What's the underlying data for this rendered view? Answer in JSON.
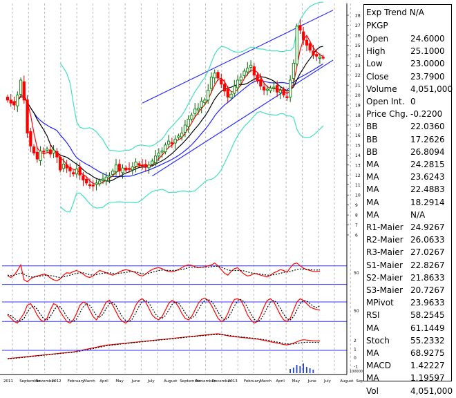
{
  "info_panel": {
    "title": "Exp Trend N/A",
    "symbol": "PKGP",
    "rows": [
      {
        "label": "Open",
        "value": "24.6000"
      },
      {
        "label": "High",
        "value": "25.1000"
      },
      {
        "label": "Low",
        "value": "23.0000"
      },
      {
        "label": "Close",
        "value": "23.7900"
      },
      {
        "label": "Volume",
        "value": "4,051,000"
      },
      {
        "label": "Open Int.",
        "value": "0"
      },
      {
        "label": "Price Chg.",
        "value": "-0.2200"
      },
      {
        "label": "BB",
        "value": "22.0360"
      },
      {
        "label": "BB",
        "value": "17.2626"
      },
      {
        "label": "BB",
        "value": "26.8094"
      },
      {
        "label": "MA",
        "value": "24.2815"
      },
      {
        "label": "MA",
        "value": "23.6243"
      },
      {
        "label": "MA",
        "value": "22.4883"
      },
      {
        "label": "MA",
        "value": "18.2914"
      },
      {
        "label": "MA",
        "value": "N/A"
      },
      {
        "label": "R1-Maier",
        "value": "24.9267"
      },
      {
        "label": "R2-Maier",
        "value": "26.0633"
      },
      {
        "label": "R3-Maier",
        "value": "27.0267"
      },
      {
        "label": "S1-Maier",
        "value": "22.8267"
      },
      {
        "label": "S2-Maier",
        "value": "21.8633"
      },
      {
        "label": "S3-Maier",
        "value": "20.7267"
      },
      {
        "label": "MPivot",
        "value": "23.9633"
      },
      {
        "label": "RSI",
        "value": "58.2545"
      },
      {
        "label": "MA",
        "value": "61.1449"
      },
      {
        "label": "Stoch",
        "value": "55.2332"
      },
      {
        "label": "MA",
        "value": "68.9275"
      },
      {
        "label": "MACD",
        "value": "1.42227"
      },
      {
        "label": "MA",
        "value": "1.19597"
      },
      {
        "label": "Vol",
        "value": "4,051,000"
      }
    ]
  },
  "chart_data": [
    {
      "type": "candlestick",
      "panel": "price",
      "y_ticks": [
        "28",
        "27",
        "26",
        "25",
        "24",
        "23",
        "22",
        "21",
        "20",
        "19",
        "18",
        "17",
        "16",
        "15",
        "14",
        "13",
        "12",
        "11",
        "10",
        "9",
        "8",
        "7",
        "6"
      ],
      "ylim": [
        5.5,
        28.5
      ],
      "x_ticks": [
        "2011",
        "September",
        "November",
        "2012",
        "February",
        "March",
        "April",
        "May",
        "June",
        "July",
        "August",
        "September",
        "November",
        "December",
        "2013",
        "February",
        "March",
        "April",
        "May",
        "June",
        "July",
        "August",
        "Sep"
      ],
      "x_range": [
        0,
        99
      ],
      "close": [
        19.5,
        19.2,
        19.0,
        20.0,
        21.5,
        19.5,
        16.2,
        14.9,
        14.2,
        13.6,
        14.4,
        14.3,
        14.6,
        14.1,
        14.5,
        13.8,
        12.5,
        13.1,
        12.7,
        12.4,
        12.1,
        12.6,
        12.0,
        11.5,
        11.2,
        11.0,
        10.9,
        11.2,
        11.4,
        11.6,
        11.8,
        11.9,
        12.4,
        13.0,
        12.4,
        12.7,
        12.5,
        12.6,
        12.8,
        13.3,
        13.0,
        12.9,
        12.8,
        13.0,
        13.4,
        13.9,
        14.2,
        14.4,
        15.0,
        15.4,
        15.2,
        15.6,
        15.9,
        16.2,
        17.0,
        17.6,
        18.0,
        18.6,
        18.7,
        19.4,
        19.5,
        20.5,
        21.8,
        22.2,
        21.7,
        21.1,
        20.4,
        19.8,
        20.1,
        20.9,
        21.5,
        21.8,
        22.4,
        22.7,
        23.0,
        22.0,
        21.4,
        20.9,
        20.5,
        20.6,
        20.7,
        20.8,
        20.3,
        20.5,
        20.0,
        19.8,
        21.5,
        23.2,
        26.9,
        26.5,
        25.5,
        25.0,
        24.5,
        24.0,
        23.9,
        23.8,
        23.79
      ],
      "ohlc_sample": [
        {
          "open": 24.6,
          "high": 25.1,
          "low": 23.0,
          "close": 23.79
        }
      ],
      "series": [
        {
          "name": "MA",
          "color": "#ff0000"
        },
        {
          "name": "MA",
          "color": "#000000"
        },
        {
          "name": "MA",
          "color": "#2020ff"
        },
        {
          "name": "BB",
          "color": "#40e0c0"
        }
      ],
      "trend_channel": {
        "upper": [
          [
            41,
            19.2
          ],
          [
            99,
            28.5
          ]
        ],
        "lower": [
          [
            44,
            11.9
          ],
          [
            99,
            23.5
          ]
        ]
      }
    },
    {
      "type": "line",
      "panel": "rsi",
      "title": "",
      "y_ticks": [
        "50"
      ],
      "series": [
        {
          "name": "RSI",
          "color": "#ff0000",
          "values": [
            48,
            45,
            50,
            60,
            72,
            40,
            36,
            42,
            46,
            48,
            50,
            52,
            50,
            44,
            40,
            38,
            42,
            50,
            55,
            54,
            58,
            60,
            57,
            52,
            47,
            45,
            48,
            55,
            60,
            58,
            55,
            52,
            50,
            53,
            57,
            60,
            62,
            60,
            58,
            55,
            50,
            48,
            52,
            58,
            62,
            65,
            66,
            64,
            60,
            58,
            57,
            59,
            62,
            66,
            70,
            72,
            71,
            68,
            66,
            67,
            68,
            70,
            72,
            76,
            70,
            62,
            54,
            50,
            58,
            64,
            66,
            58,
            52,
            48,
            50,
            54,
            52,
            50,
            48,
            46,
            50,
            55,
            58,
            62,
            60,
            56,
            66,
            74,
            76,
            70,
            65,
            62,
            60,
            58,
            58,
            58.25
          ]
        },
        {
          "name": "MA",
          "color": "#000000",
          "values": [
            50,
            49,
            50,
            52,
            55,
            52,
            48,
            46,
            46,
            47,
            48,
            49,
            50,
            49,
            48,
            46,
            45,
            46,
            48,
            50,
            52,
            54,
            55,
            55,
            53,
            51,
            50,
            51,
            53,
            54,
            55,
            55,
            54,
            53,
            54,
            55,
            56,
            57,
            58,
            57,
            55,
            53,
            53,
            54,
            56,
            58,
            60,
            61,
            61,
            60,
            60,
            60,
            61,
            62,
            64,
            66,
            67,
            67,
            67,
            67,
            67,
            67,
            68,
            69,
            69,
            67,
            64,
            61,
            60,
            60,
            60,
            60,
            59,
            57,
            55,
            54,
            53,
            52,
            51,
            50,
            50,
            51,
            52,
            54,
            56,
            57,
            58,
            60,
            62,
            63,
            63,
            62,
            62,
            61,
            61,
            61.14
          ]
        }
      ]
    },
    {
      "type": "line",
      "panel": "stochastic",
      "title": "",
      "y_ticks": [
        "50"
      ],
      "series": [
        {
          "name": "Stoch",
          "color": "#ff0000",
          "values": [
            40,
            30,
            20,
            15,
            30,
            45,
            70,
            75,
            60,
            40,
            25,
            20,
            30,
            55,
            75,
            70,
            50,
            35,
            20,
            15,
            25,
            45,
            70,
            80,
            75,
            55,
            35,
            25,
            40,
            60,
            80,
            85,
            70,
            50,
            30,
            20,
            15,
            25,
            45,
            70,
            85,
            90,
            80,
            60,
            40,
            30,
            25,
            35,
            55,
            75,
            85,
            80,
            65,
            45,
            30,
            25,
            35,
            55,
            75,
            88,
            92,
            85,
            70,
            50,
            30,
            20,
            25,
            45,
            70,
            88,
            90,
            85,
            65,
            40,
            25,
            15,
            20,
            40,
            65,
            85,
            90,
            80,
            60,
            40,
            25,
            20,
            30,
            55,
            80,
            90,
            85,
            75,
            65,
            60,
            57,
            55.23
          ]
        },
        {
          "name": "MA",
          "color": "#000000",
          "values": [
            42,
            38,
            30,
            22,
            22,
            30,
            48,
            63,
            68,
            58,
            42,
            28,
            25,
            35,
            53,
            67,
            65,
            52,
            35,
            23,
            20,
            28,
            47,
            65,
            75,
            70,
            55,
            38,
            33,
            42,
            60,
            75,
            78,
            68,
            50,
            33,
            22,
            20,
            28,
            47,
            67,
            82,
            85,
            77,
            60,
            43,
            32,
            30,
            38,
            55,
            72,
            80,
            77,
            63,
            47,
            33,
            30,
            38,
            55,
            73,
            85,
            88,
            82,
            68,
            50,
            33,
            25,
            30,
            47,
            68,
            83,
            88,
            80,
            63,
            43,
            27,
            20,
            25,
            43,
            63,
            80,
            85,
            77,
            60,
            42,
            28,
            25,
            35,
            55,
            75,
            85,
            83,
            75,
            67,
            62,
            68.93
          ]
        }
      ]
    },
    {
      "type": "line",
      "panel": "macd",
      "title": "",
      "y_ticks": [
        "2",
        "1",
        "0",
        "-1"
      ],
      "series": [
        {
          "name": "MACD",
          "color": "#ff0000",
          "values": [
            -1.2,
            -1.15,
            -1.1,
            -1.05,
            -1.0,
            -0.95,
            -0.9,
            -0.85,
            -0.8,
            -0.75,
            -0.7,
            -0.65,
            -0.6,
            -0.55,
            -0.5,
            -0.45,
            -0.4,
            -0.35,
            -0.3,
            -0.25,
            -0.2,
            -0.1,
            0.0,
            0.1,
            0.2,
            0.3,
            0.4,
            0.5,
            0.6,
            0.7,
            0.8,
            0.85,
            0.9,
            0.95,
            1.0,
            1.05,
            1.1,
            1.15,
            1.2,
            1.25,
            1.3,
            1.35,
            1.4,
            1.45,
            1.5,
            1.55,
            1.6,
            1.65,
            1.7,
            1.75,
            1.8,
            1.85,
            1.9,
            1.95,
            2.0,
            2.05,
            2.1,
            2.15,
            2.2,
            2.25,
            2.3,
            2.35,
            2.4,
            2.45,
            2.5,
            2.4,
            2.3,
            2.2,
            2.1,
            2.05,
            2.0,
            1.95,
            1.9,
            1.85,
            1.8,
            1.75,
            1.7,
            1.6,
            1.5,
            1.4,
            1.3,
            1.2,
            1.1,
            1.0,
            0.9,
            0.85,
            0.95,
            1.1,
            1.3,
            1.5,
            1.6,
            1.55,
            1.5,
            1.45,
            1.42,
            1.42
          ]
        },
        {
          "name": "MA",
          "color": "#000000",
          "values": [
            -1.25,
            -1.2,
            -1.15,
            -1.1,
            -1.05,
            -1.0,
            -0.95,
            -0.9,
            -0.85,
            -0.8,
            -0.75,
            -0.7,
            -0.65,
            -0.6,
            -0.55,
            -0.5,
            -0.45,
            -0.4,
            -0.35,
            -0.3,
            -0.25,
            -0.18,
            -0.1,
            0.0,
            0.1,
            0.2,
            0.3,
            0.4,
            0.5,
            0.6,
            0.7,
            0.76,
            0.82,
            0.88,
            0.94,
            1.0,
            1.05,
            1.1,
            1.15,
            1.2,
            1.25,
            1.3,
            1.35,
            1.4,
            1.45,
            1.5,
            1.55,
            1.6,
            1.65,
            1.7,
            1.75,
            1.8,
            1.85,
            1.9,
            1.95,
            2.0,
            2.05,
            2.1,
            2.15,
            2.2,
            2.25,
            2.3,
            2.33,
            2.36,
            2.38,
            2.36,
            2.32,
            2.27,
            2.2,
            2.13,
            2.07,
            2.02,
            1.97,
            1.92,
            1.87,
            1.82,
            1.76,
            1.69,
            1.61,
            1.53,
            1.44,
            1.35,
            1.26,
            1.17,
            1.08,
            1.0,
            0.97,
            0.99,
            1.05,
            1.13,
            1.2,
            1.22,
            1.22,
            1.21,
            1.2,
            1.196
          ]
        }
      ]
    },
    {
      "type": "bar",
      "panel": "volume",
      "title": "",
      "y_ticks": [
        "100000"
      ],
      "values": [
        6,
        8,
        12,
        10,
        14,
        9,
        7,
        5
      ]
    }
  ]
}
